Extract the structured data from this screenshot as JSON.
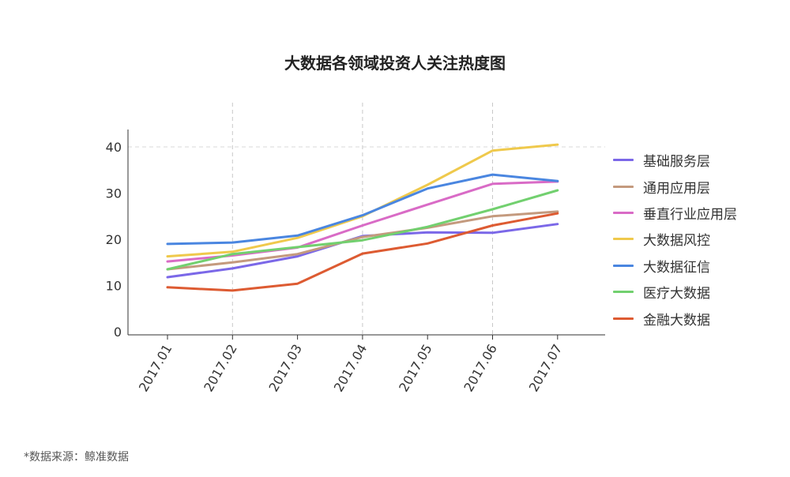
{
  "chart_data": {
    "type": "line",
    "title": "大数据各领域投资人关注热度图",
    "xlabel": "",
    "ylabel": "",
    "categories": [
      "2017.01",
      "2017.02",
      "2017.03",
      "2017.04",
      "2017.05",
      "2017.06",
      "2017.07"
    ],
    "ylim": [
      0,
      44
    ],
    "yticks": [
      0,
      10,
      20,
      30,
      40
    ],
    "grid": "dashed vertical at 2017.02, 2017.04, 2017.06; dashed horizontal at 40",
    "legend_position": "right",
    "series": [
      {
        "name": "基础服务层",
        "color": "#7b68e8",
        "values": [
          11.8,
          13.7,
          16.3,
          20.7,
          21.5,
          21.4,
          23.3
        ]
      },
      {
        "name": "通用应用层",
        "color": "#c49a7e",
        "values": [
          13.5,
          15.0,
          16.8,
          20.5,
          22.5,
          25.0,
          26.0
        ]
      },
      {
        "name": "垂直行业应用层",
        "color": "#d96bc6",
        "values": [
          15.2,
          16.5,
          18.2,
          23.0,
          27.5,
          32.0,
          32.5
        ]
      },
      {
        "name": "大数据风控",
        "color": "#efc94c",
        "values": [
          16.3,
          17.3,
          20.3,
          25.0,
          31.8,
          39.2,
          40.5
        ]
      },
      {
        "name": "大数据征信",
        "color": "#4a86e0",
        "values": [
          19.0,
          19.3,
          20.8,
          25.2,
          31.0,
          34.0,
          32.6
        ]
      },
      {
        "name": "医疗大数据",
        "color": "#72d06f",
        "values": [
          13.5,
          16.8,
          18.3,
          19.8,
          22.7,
          26.5,
          30.6
        ]
      },
      {
        "name": "金融大数据",
        "color": "#dd5b32",
        "values": [
          9.6,
          8.9,
          10.4,
          16.9,
          19.1,
          23.0,
          25.6
        ]
      }
    ]
  },
  "source": "*数据来源：鲸准数据"
}
